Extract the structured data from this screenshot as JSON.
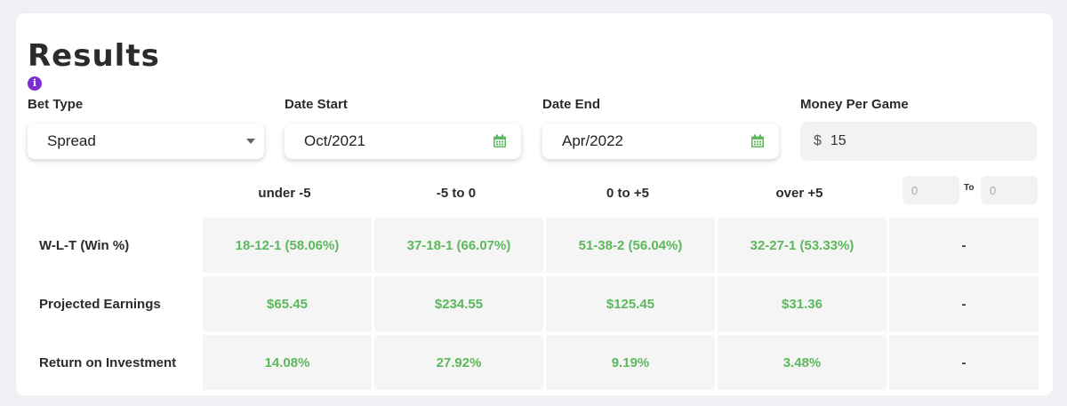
{
  "header": {
    "title": "Results",
    "info_icon": "info-icon"
  },
  "filters": {
    "bet_type": {
      "label": "Bet Type",
      "value": "Spread"
    },
    "date_start": {
      "label": "Date Start",
      "value": "Oct/2021"
    },
    "date_end": {
      "label": "Date End",
      "value": "Apr/2022"
    },
    "money": {
      "label": "Money Per Game",
      "currency": "$",
      "value": "15"
    }
  },
  "columns": [
    "under -5",
    "-5 to 0",
    "0 to +5",
    "over +5"
  ],
  "custom_range": {
    "from_placeholder": "0",
    "to_label": "To",
    "to_placeholder": "0"
  },
  "rows": [
    {
      "label": "W-L-T (Win %)",
      "values": [
        "18-12-1 (58.06%)",
        "37-18-1 (66.07%)",
        "51-38-2 (56.04%)",
        "32-27-1 (53.33%)",
        "-"
      ]
    },
    {
      "label": "Projected Earnings",
      "values": [
        "$65.45",
        "$234.55",
        "$125.45",
        "$31.36",
        "-"
      ]
    },
    {
      "label": "Return on Investment",
      "values": [
        "14.08%",
        "27.92%",
        "9.19%",
        "3.48%",
        "-"
      ]
    }
  ],
  "colors": {
    "positive": "#5cb85c",
    "info": "#7b2fd0"
  }
}
